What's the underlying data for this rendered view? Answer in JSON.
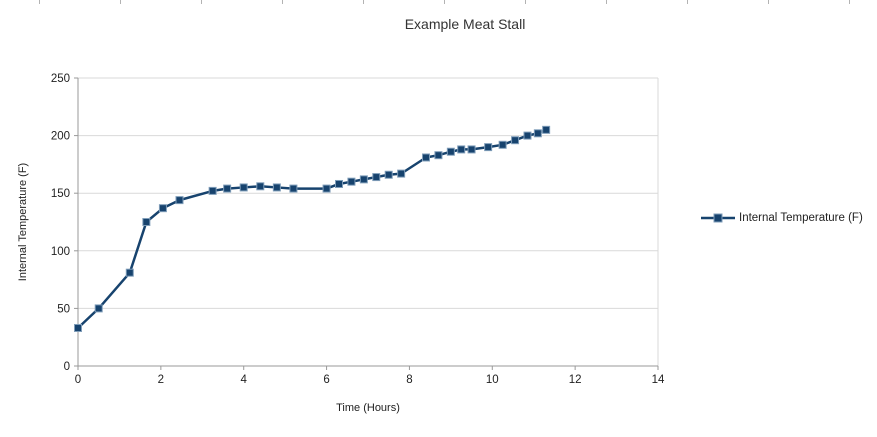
{
  "chart_data": {
    "type": "line",
    "title": "Example Meat Stall",
    "xlabel": "Time (Hours)",
    "ylabel": "Internal Temperature (F)",
    "xlim": [
      0,
      14
    ],
    "ylim": [
      0,
      250
    ],
    "xticks": [
      0,
      2,
      4,
      6,
      8,
      10,
      12,
      14
    ],
    "yticks": [
      0,
      50,
      100,
      150,
      200,
      250
    ],
    "grid": "horizontal",
    "legend_position": "right",
    "colors": {
      "gridline": "#d9d9d9",
      "axis": "#999999",
      "tick_label": "#222222",
      "series_line": "#17436e",
      "marker_fill": "#17436e",
      "marker_border": "#7f9db9"
    },
    "series": [
      {
        "name": "Internal Temperature (F)",
        "marker": "square",
        "x": [
          0,
          0.5,
          1.25,
          1.65,
          2.05,
          2.45,
          3.25,
          3.6,
          4.0,
          4.4,
          4.8,
          5.2,
          6.0,
          6.3,
          6.6,
          6.9,
          7.2,
          7.5,
          7.8,
          8.4,
          8.7,
          9.0,
          9.25,
          9.5,
          9.9,
          10.25,
          10.55,
          10.85,
          11.1,
          11.3
        ],
        "y": [
          33,
          50,
          81,
          125,
          137,
          144,
          152,
          154,
          155,
          156,
          155,
          154,
          154,
          158,
          160,
          162,
          164,
          166,
          167,
          181,
          183,
          186,
          188,
          188,
          190,
          192,
          196,
          200,
          202,
          205
        ]
      }
    ]
  }
}
